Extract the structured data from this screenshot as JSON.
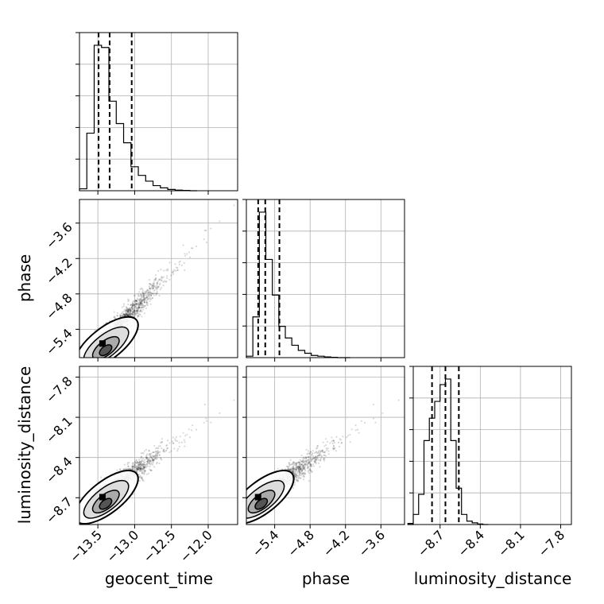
{
  "chart_data": {
    "type": "corner",
    "parameters": [
      "geocent_time",
      "phase",
      "luminosity_distance"
    ],
    "labels": {
      "geocent_time": "geocent_time",
      "phase": "phase",
      "luminosity_distance": "luminosity_distance"
    },
    "ranges": {
      "geocent_time": [
        -13.75,
        -11.6
      ],
      "phase": [
        -5.88,
        -3.2
      ],
      "luminosity_distance": [
        -8.9,
        -7.72
      ]
    },
    "ticks": {
      "geocent_time": [
        -13.5,
        -13.0,
        -12.5,
        -12.0
      ],
      "phase": [
        -5.4,
        -4.8,
        -4.2,
        -3.6
      ],
      "luminosity_distance": [
        -8.7,
        -8.4,
        -8.1,
        -7.8
      ]
    },
    "tick_labels": {
      "geocent_time": [
        "−13.5",
        "−13.0",
        "−12.5",
        "−12.0"
      ],
      "phase": [
        "−5.4",
        "−4.8",
        "−4.2",
        "−3.6"
      ],
      "luminosity_distance": [
        "−8.7",
        "−8.4",
        "−8.1",
        "−7.8"
      ]
    },
    "quantiles": {
      "geocent_time": [
        -13.49,
        -13.34,
        -13.04
      ],
      "phase": [
        -5.68,
        -5.56,
        -5.32
      ],
      "luminosity_distance": [
        -8.76,
        -8.66,
        -8.56
      ]
    },
    "histograms": {
      "geocent_time": {
        "edges": [
          -13.75,
          -13.65,
          -13.55,
          -13.45,
          -13.35,
          -13.25,
          -13.15,
          -13.05,
          -12.95,
          -12.85,
          -12.75,
          -12.65,
          -12.55,
          -12.45,
          -12.35,
          -12.25,
          -12.15
        ],
        "counts": [
          6,
          180,
          455,
          448,
          280,
          210,
          150,
          75,
          48,
          30,
          16,
          9,
          4,
          2,
          1,
          0
        ]
      },
      "phase": {
        "edges": [
          -5.88,
          -5.77,
          -5.66,
          -5.55,
          -5.44,
          -5.33,
          -5.22,
          -5.11,
          -5.0,
          -4.89,
          -4.78,
          -4.67,
          -4.56,
          -4.45,
          -4.34,
          -4.23,
          -4.12
        ],
        "counts": [
          4,
          112,
          400,
          270,
          172,
          86,
          54,
          34,
          20,
          12,
          6,
          4,
          2,
          1,
          0,
          0
        ]
      },
      "luminosity_distance": {
        "edges": [
          -8.98,
          -8.94,
          -8.9,
          -8.86,
          -8.82,
          -8.78,
          -8.74,
          -8.7,
          -8.66,
          -8.62,
          -8.58,
          -8.54,
          -8.5,
          -8.46,
          -8.42,
          -8.38,
          -8.34
        ],
        "counts": [
          0,
          2,
          18,
          54,
          150,
          190,
          220,
          250,
          260,
          150,
          65,
          18,
          6,
          3,
          1,
          0
        ]
      }
    },
    "grid": true,
    "colors": {
      "line": "#000000",
      "grid": "#b0b0b0",
      "points": "#000000"
    }
  }
}
